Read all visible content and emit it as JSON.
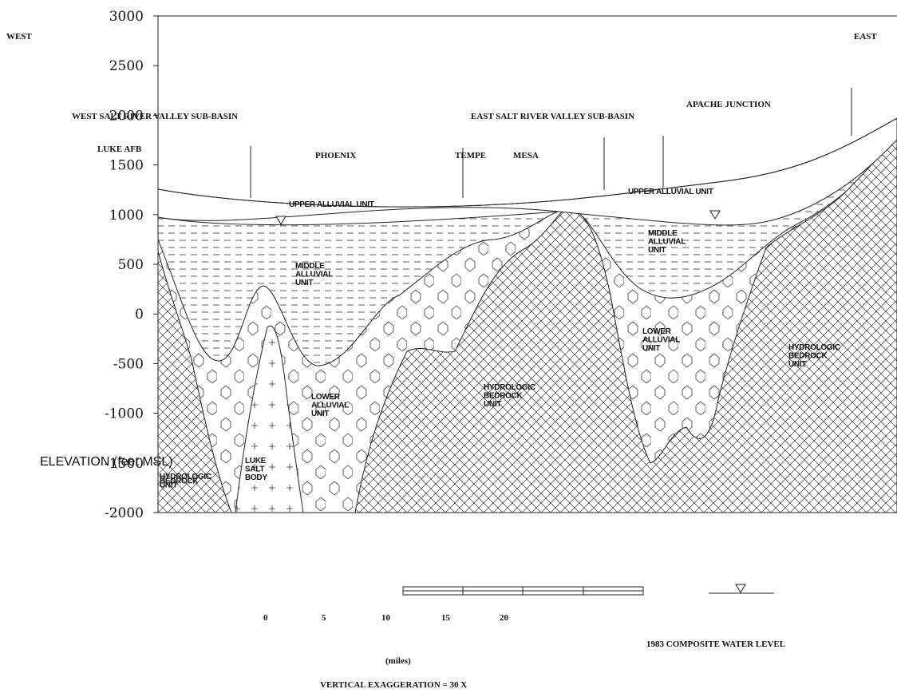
{
  "axis": {
    "label": "ELEVATION (feet MSL)",
    "ylim": [
      -2000,
      3000
    ],
    "ticks": [
      3000,
      2500,
      2000,
      1500,
      1000,
      500,
      0,
      -500,
      -1000,
      -1500,
      -2000
    ]
  },
  "directions": {
    "west": "WEST",
    "east": "EAST"
  },
  "places": [
    "WEST SALT RIVER VALLEY SUB-BASIN",
    "EAST SALT RIVER VALLEY SUB-BASIN",
    "APACHE JUNCTION",
    "LUKE AFB",
    "PHOENIX",
    "TEMPE",
    "MESA"
  ],
  "units": [
    {
      "lines": [
        "UPPER ALLUVIAL UNIT"
      ]
    },
    {
      "lines": [
        "UPPER ALLUVIAL UNIT"
      ]
    },
    {
      "lines": [
        "MIDDLE",
        "ALLUVIAL",
        "UNIT"
      ]
    },
    {
      "lines": [
        "MIDDLE",
        "ALLUVIAL",
        "UNIT"
      ]
    },
    {
      "lines": [
        "LOWER",
        "ALLUVIAL",
        "UNIT"
      ]
    },
    {
      "lines": [
        "LOWER",
        "ALLUVIAL",
        "UNIT"
      ]
    },
    {
      "lines": [
        "HYDROLOGIC",
        "BEDROCK",
        "UNIT"
      ]
    },
    {
      "lines": [
        "HYDROLOGIC",
        "BEDROCK",
        "UNIT"
      ]
    },
    {
      "lines": [
        "LUKE",
        "SALT",
        "BODY"
      ]
    },
    {
      "lines": [
        "HYDROLOGIC",
        "BEDROCK",
        "UNIT"
      ]
    }
  ],
  "scale": {
    "ticks": [
      0,
      5,
      10,
      15,
      20
    ],
    "unit": "(miles)"
  },
  "legend": {
    "water_level": "1983 COMPOSITE WATER LEVEL"
  },
  "note": "VERTICAL EXAGGERATION = 30 X"
}
